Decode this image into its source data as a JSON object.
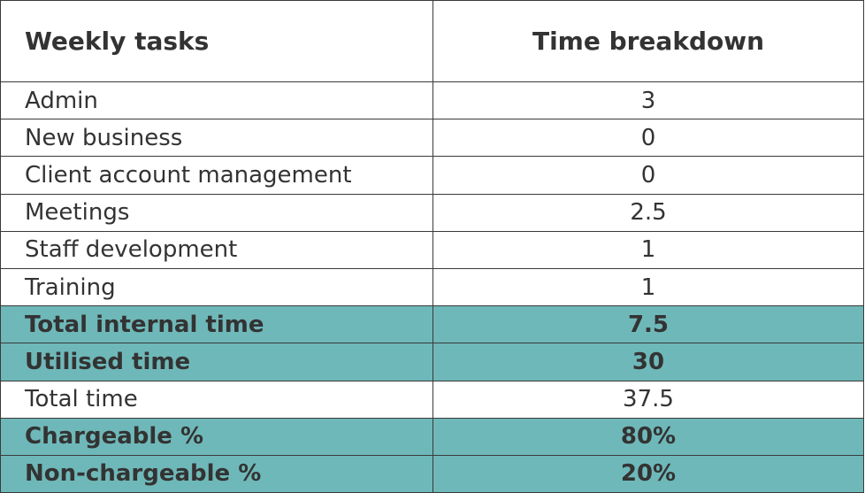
{
  "table": {
    "header": [
      "Weekly tasks",
      "Time breakdown"
    ],
    "rows": [
      {
        "cells": [
          "Admin",
          "3"
        ],
        "highlight": false
      },
      {
        "cells": [
          "New business",
          "0"
        ],
        "highlight": false
      },
      {
        "cells": [
          "Client account management",
          "0"
        ],
        "highlight": false
      },
      {
        "cells": [
          "Meetings",
          "2.5"
        ],
        "highlight": false
      },
      {
        "cells": [
          "Staff development",
          "1"
        ],
        "highlight": false
      },
      {
        "cells": [
          "Training",
          "1"
        ],
        "highlight": false
      },
      {
        "cells": [
          "Total internal time",
          "7.5"
        ],
        "highlight": true
      },
      {
        "cells": [
          "Utilised time",
          "30"
        ],
        "highlight": true
      },
      {
        "cells": [
          "Total time",
          "37.5"
        ],
        "highlight": false
      },
      {
        "cells": [
          "Chargeable %",
          "80%"
        ],
        "highlight": true
      },
      {
        "cells": [
          "Non-chargeable %",
          "20%"
        ],
        "highlight": true
      }
    ]
  }
}
